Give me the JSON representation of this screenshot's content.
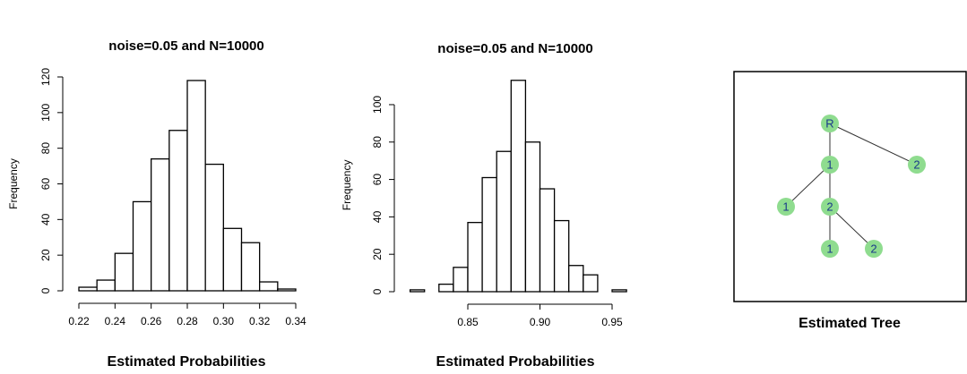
{
  "chart_data": [
    {
      "type": "histogram",
      "title": "noise=0.05 and N=10000",
      "x_label": "Estimated Probabilities",
      "y_label": "Frequency",
      "bins": [
        0.22,
        0.23,
        0.24,
        0.25,
        0.26,
        0.27,
        0.28,
        0.29,
        0.3,
        0.31,
        0.32,
        0.33,
        0.34
      ],
      "values": [
        2,
        6,
        21,
        50,
        74,
        90,
        118,
        71,
        35,
        27,
        5,
        1
      ],
      "color": "#ffffff",
      "xlim": [
        0.22,
        0.34
      ],
      "xticks": [
        0.22,
        0.24,
        0.26,
        0.28,
        {
          "value": 0.3,
          "label": "0.30"
        },
        0.32,
        0.34
      ],
      "ylim": [
        0,
        120
      ],
      "yticks": [
        0,
        20,
        40,
        60,
        80,
        100,
        120
      ]
    },
    {
      "type": "histogram",
      "title": "noise=0.05 and N=10000",
      "x_label": "Estimated Probabilities",
      "y_label": "Frequency",
      "bins": [
        0.81,
        0.82,
        0.83,
        0.84,
        0.85,
        0.86,
        0.87,
        0.88,
        0.89,
        0.9,
        0.91,
        0.92,
        0.93,
        0.94,
        0.95,
        0.96
      ],
      "values": [
        1,
        0,
        4,
        13,
        37,
        61,
        75,
        113,
        80,
        55,
        38,
        14,
        9,
        0,
        1
      ],
      "color": "#ffffff",
      "xlim": [
        0.81,
        0.96
      ],
      "xticks": [
        0.85,
        {
          "value": 0.9,
          "label": "0.90"
        },
        0.95
      ],
      "ylim": [
        0,
        114
      ],
      "yticks": [
        0,
        20,
        40,
        60,
        80,
        100
      ]
    }
  ],
  "tree": {
    "caption": "Estimated Tree",
    "nodes": [
      {
        "label": "R"
      },
      {
        "label": "1"
      },
      {
        "label": "2"
      },
      {
        "label": "1"
      },
      {
        "label": "2"
      },
      {
        "label": "1"
      },
      {
        "label": "2"
      }
    ]
  }
}
